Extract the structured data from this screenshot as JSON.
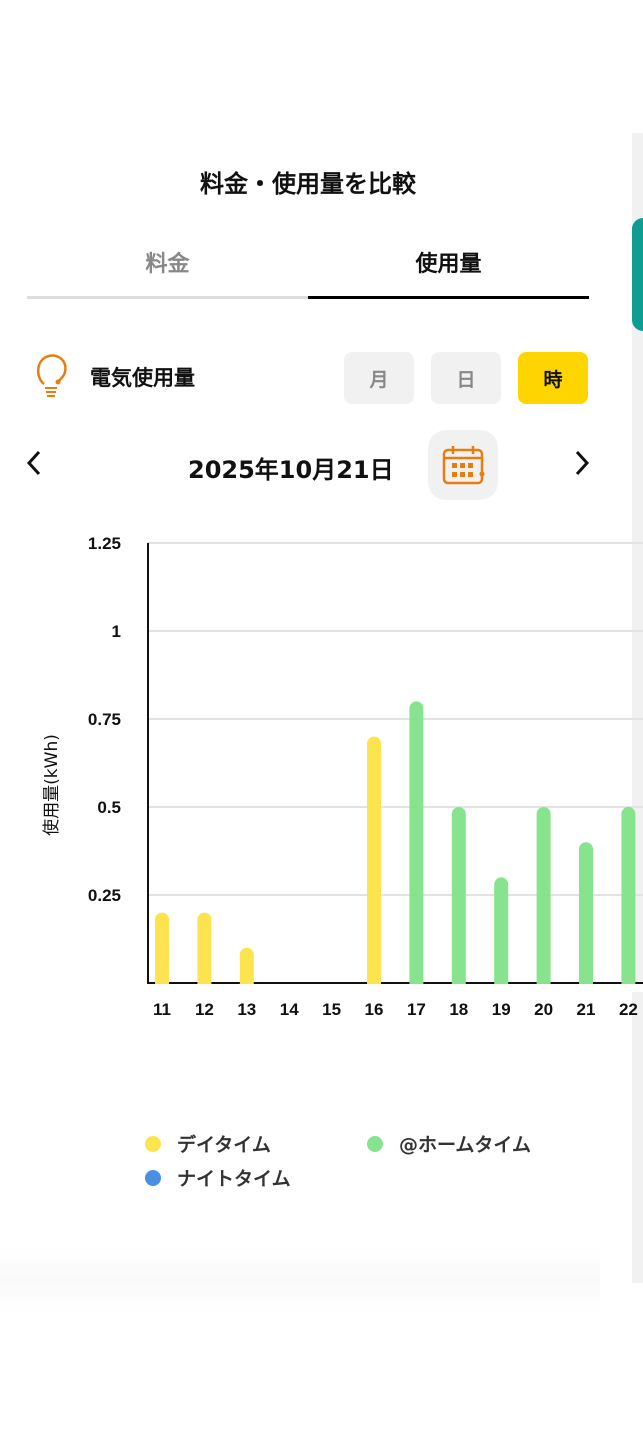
{
  "header": {
    "title": "料金・使用量を比較"
  },
  "tabs": [
    {
      "label": "料金",
      "active": false
    },
    {
      "label": "使用量",
      "active": true
    }
  ],
  "section": {
    "label": "電気使用量",
    "icon": "lightbulb-icon",
    "icon_color": "#e87d0d"
  },
  "modes": [
    {
      "label": "月",
      "active": false
    },
    {
      "label": "日",
      "active": false
    },
    {
      "label": "時",
      "active": true
    }
  ],
  "date": {
    "label": "2025年10月21日",
    "prev_icon": "chevron-left-icon",
    "next_icon": "chevron-right-icon",
    "calendar_icon": "calendar-icon"
  },
  "colors": {
    "day": "#fde34e",
    "home": "#88e38f",
    "night": "#4a90e2",
    "accent": "#ffd500"
  },
  "chart_data": {
    "type": "bar",
    "ylabel": "使用量(kWh)",
    "ylim": [
      0,
      1.25
    ],
    "yticks": [
      "0.25",
      "0.5",
      "0.75",
      "1",
      "1.25"
    ],
    "grid": true,
    "categories": [
      "11",
      "12",
      "13",
      "14",
      "15",
      "16",
      "17",
      "18",
      "19",
      "20",
      "21",
      "22"
    ],
    "values": [
      0.2,
      0.2,
      0.1,
      0,
      0,
      0.7,
      0.8,
      0.5,
      0.3,
      0.5,
      0.4,
      0.5
    ],
    "series_of_bar": [
      "デイタイム",
      "デイタイム",
      "デイタイム",
      "デイタイム",
      "デイタイム",
      "デイタイム",
      "@ホームタイム",
      "@ホームタイム",
      "@ホームタイム",
      "@ホームタイム",
      "@ホームタイム",
      "@ホームタイム"
    ],
    "legend": [
      {
        "name": "デイタイム",
        "color": "#fde34e"
      },
      {
        "name": "@ホームタイム",
        "color": "#88e38f"
      },
      {
        "name": "ナイトタイム",
        "color": "#4a90e2"
      }
    ],
    "legend_position": "bottom"
  }
}
